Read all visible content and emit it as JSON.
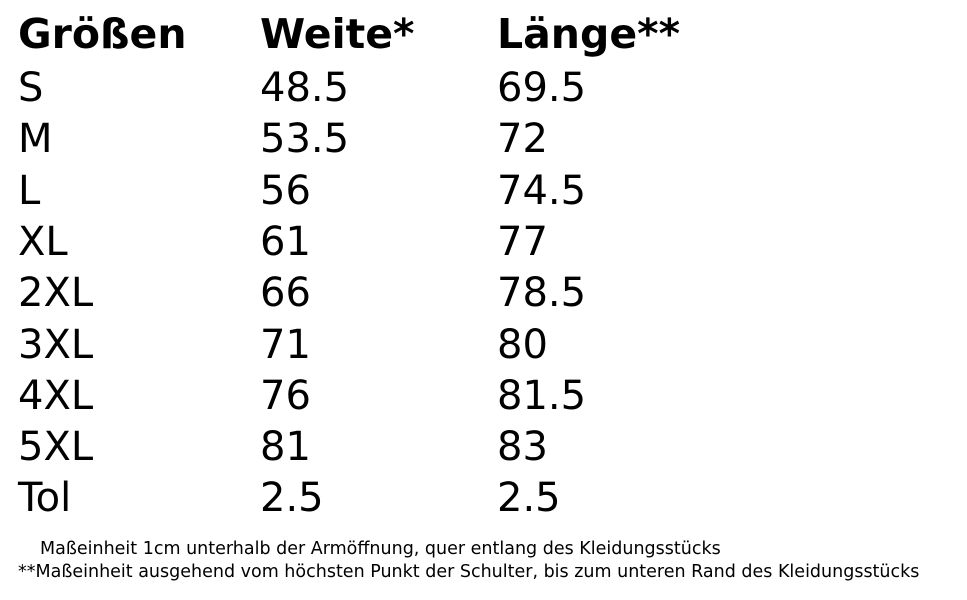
{
  "table": {
    "header": [
      "Größen",
      "Weite*",
      "Länge**"
    ],
    "rows": [
      [
        "S",
        48.5,
        69.5
      ],
      [
        "M",
        53.5,
        72
      ],
      [
        "L",
        56,
        74.5
      ],
      [
        "XL",
        61,
        77
      ],
      [
        "2XL",
        66,
        78.5
      ],
      [
        "3XL",
        71,
        80
      ],
      [
        "4XL",
        76,
        81.5
      ],
      [
        "5XL",
        81,
        83
      ],
      [
        "Tol",
        2.5,
        2.5
      ]
    ]
  },
  "notes": [
    "Maßeinheit 1cm unterhalb der Armöffnung, quer entlang des Kleidungsstücks",
    "**Maßeinheit ausgehend vom höchsten Punkt der Schulter, bis zum unteren Rand des Kleidungsstücks"
  ]
}
